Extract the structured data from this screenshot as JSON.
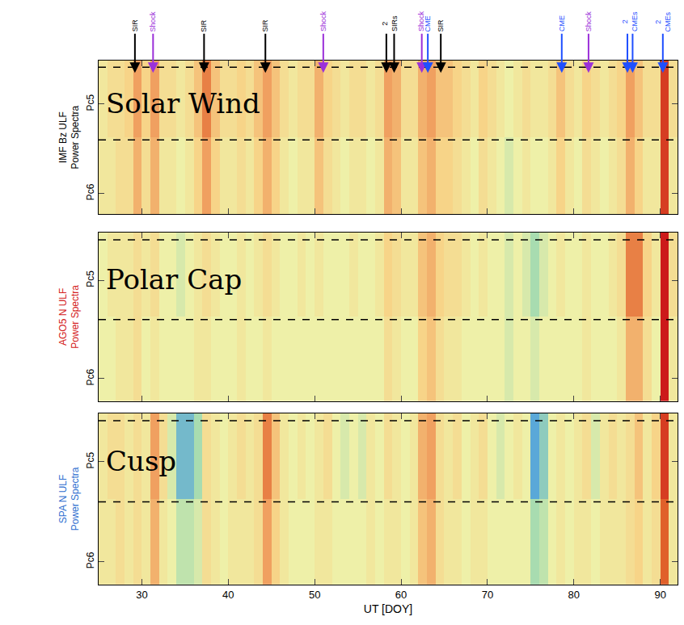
{
  "chart_data": [
    {
      "type": "heatmap",
      "label": "Solar Wind",
      "ylabel": [
        "IMF Bz ULF",
        "Power Spectra"
      ],
      "color": "#000000",
      "x": [
        25.5,
        26.5,
        27.5,
        28.5,
        29.5,
        30.5,
        31.5,
        32.5,
        33.5,
        34.5,
        35.5,
        36.5,
        37.5,
        38.5,
        39.5,
        40.5,
        41.5,
        42.5,
        43.5,
        44.5,
        45.5,
        46.5,
        47.5,
        48.5,
        49.5,
        50.5,
        51.5,
        52.5,
        53.5,
        54.5,
        55.5,
        56.5,
        57.5,
        58.5,
        59.5,
        60.5,
        61.5,
        62.5,
        63.5,
        64.5,
        65.5,
        66.5,
        67.5,
        68.5,
        69.5,
        70.5,
        71.5,
        72.5,
        73.5,
        74.5,
        75.5,
        76.5,
        77.5,
        78.5,
        79.5,
        80.5,
        81.5,
        82.5,
        83.5,
        84.5,
        85.5,
        86.5,
        87.5,
        88.5,
        89.5,
        90.5,
        91.5
      ],
      "y": [
        0.75,
        2.25
      ],
      "z": [
        [
          0.55,
          0.55,
          0.6,
          0.6,
          0.75,
          0.6,
          0.75,
          0.55,
          0.55,
          0.5,
          0.55,
          0.65,
          0.8,
          0.65,
          0.55,
          0.55,
          0.6,
          0.55,
          0.65,
          0.75,
          0.65,
          0.55,
          0.5,
          0.55,
          0.55,
          0.7,
          0.6,
          0.55,
          0.5,
          0.55,
          0.55,
          0.5,
          0.55,
          0.75,
          0.7,
          0.55,
          0.55,
          0.7,
          0.75,
          0.65,
          0.65,
          0.6,
          0.55,
          0.5,
          0.6,
          0.55,
          0.5,
          0.45,
          0.5,
          0.55,
          0.5,
          0.5,
          0.55,
          0.65,
          0.55,
          0.5,
          0.6,
          0.55,
          0.5,
          0.55,
          0.6,
          0.75,
          0.65,
          0.55,
          0.55,
          0.95,
          0.55
        ],
        [
          0.55,
          0.6,
          0.6,
          0.65,
          0.8,
          0.65,
          0.8,
          0.6,
          0.6,
          0.55,
          0.6,
          0.7,
          0.85,
          0.7,
          0.6,
          0.6,
          0.65,
          0.6,
          0.7,
          0.8,
          0.7,
          0.6,
          0.55,
          0.6,
          0.6,
          0.75,
          0.65,
          0.6,
          0.55,
          0.6,
          0.6,
          0.55,
          0.6,
          0.8,
          0.75,
          0.6,
          0.6,
          0.75,
          0.8,
          0.7,
          0.7,
          0.65,
          0.6,
          0.55,
          0.65,
          0.6,
          0.55,
          0.5,
          0.55,
          0.6,
          0.55,
          0.55,
          0.6,
          0.7,
          0.6,
          0.55,
          0.65,
          0.6,
          0.55,
          0.6,
          0.65,
          0.8,
          0.7,
          0.6,
          0.6,
          0.95,
          0.6
        ]
      ],
      "zlim": [
        0,
        1
      ],
      "xlim": [
        25,
        92
      ],
      "xticks": [
        30,
        40,
        50,
        60,
        70,
        80,
        90
      ],
      "ylim": [
        0,
        3
      ],
      "yticks": [
        {
          "value": 0.4,
          "label": "Pc6"
        },
        {
          "value": 2.15,
          "label": "Pc5"
        }
      ],
      "bands": [
        1.45,
        2.87
      ],
      "tick_labels": "y",
      "events": [
        {
          "label": "SIR",
          "x": [
            29.2
          ],
          "color": "#000000"
        },
        {
          "label": "Shock",
          "x": [
            31.3
          ],
          "color": "#9b30d9"
        },
        {
          "label": "SIR",
          "x": [
            37.2
          ],
          "color": "#000000"
        },
        {
          "label": "SIR",
          "x": [
            44.3
          ],
          "color": "#000000"
        },
        {
          "label": "Shock",
          "x": [
            51.0
          ],
          "color": "#9b30d9"
        },
        {
          "label": "2 SIRs",
          "x": [
            58.3,
            59.2
          ],
          "color": "#000000"
        },
        {
          "label": "Shock",
          "x": [
            62.4
          ],
          "color": "#9b30d9"
        },
        {
          "label": "CME",
          "x": [
            63.1
          ],
          "color": "#1f4fff"
        },
        {
          "label": "SIR",
          "x": [
            64.6
          ],
          "color": "#000000"
        },
        {
          "label": "CME",
          "x": [
            78.6
          ],
          "color": "#1f4fff"
        },
        {
          "label": "Shock",
          "x": [
            81.7
          ],
          "color": "#9b30d9"
        },
        {
          "label": "2 CMEs",
          "x": [
            86.2,
            86.8
          ],
          "color": "#1f4fff"
        },
        {
          "label": "2 CMEs",
          "x": [
            90.3
          ],
          "color": "#1f4fff"
        }
      ]
    },
    {
      "type": "heatmap",
      "label": "Polar Cap",
      "ylabel": [
        "AGO5 N ULF",
        "Power Spectra"
      ],
      "color": "#d42020",
      "x": [
        25.5,
        26.5,
        27.5,
        28.5,
        29.5,
        30.5,
        31.5,
        32.5,
        33.5,
        34.5,
        35.5,
        36.5,
        37.5,
        38.5,
        39.5,
        40.5,
        41.5,
        42.5,
        43.5,
        44.5,
        45.5,
        46.5,
        47.5,
        48.5,
        49.5,
        50.5,
        51.5,
        52.5,
        53.5,
        54.5,
        55.5,
        56.5,
        57.5,
        58.5,
        59.5,
        60.5,
        61.5,
        62.5,
        63.5,
        64.5,
        65.5,
        66.5,
        67.5,
        68.5,
        69.5,
        70.5,
        71.5,
        72.5,
        73.5,
        74.5,
        75.5,
        76.5,
        77.5,
        78.5,
        79.5,
        80.5,
        81.5,
        82.5,
        83.5,
        84.5,
        85.5,
        86.5,
        87.5,
        88.5,
        89.5,
        90.5,
        91.5
      ],
      "y": [
        0.75,
        2.25
      ],
      "z": [
        [
          0.5,
          0.5,
          0.55,
          0.55,
          0.6,
          0.5,
          0.55,
          0.5,
          0.5,
          0.5,
          0.5,
          0.55,
          0.55,
          0.5,
          0.5,
          0.5,
          0.55,
          0.5,
          0.5,
          0.55,
          0.5,
          0.5,
          0.5,
          0.5,
          0.5,
          0.5,
          0.5,
          0.5,
          0.5,
          0.5,
          0.5,
          0.5,
          0.5,
          0.6,
          0.55,
          0.5,
          0.5,
          0.65,
          0.7,
          0.6,
          0.55,
          0.55,
          0.5,
          0.5,
          0.5,
          0.5,
          0.5,
          0.45,
          0.5,
          0.5,
          0.45,
          0.5,
          0.5,
          0.5,
          0.5,
          0.5,
          0.55,
          0.5,
          0.5,
          0.5,
          0.55,
          0.75,
          0.75,
          0.6,
          0.5,
          1.0,
          0.55
        ],
        [
          0.5,
          0.55,
          0.55,
          0.55,
          0.6,
          0.55,
          0.6,
          0.5,
          0.5,
          0.45,
          0.5,
          0.55,
          0.6,
          0.55,
          0.5,
          0.5,
          0.55,
          0.5,
          0.55,
          0.6,
          0.55,
          0.5,
          0.5,
          0.55,
          0.5,
          0.55,
          0.5,
          0.5,
          0.5,
          0.55,
          0.5,
          0.5,
          0.55,
          0.65,
          0.6,
          0.55,
          0.55,
          0.7,
          0.75,
          0.65,
          0.6,
          0.6,
          0.55,
          0.5,
          0.55,
          0.5,
          0.5,
          0.45,
          0.5,
          0.45,
          0.35,
          0.45,
          0.5,
          0.55,
          0.5,
          0.5,
          0.55,
          0.5,
          0.5,
          0.55,
          0.6,
          0.85,
          0.85,
          0.65,
          0.55,
          1.0,
          0.6
        ]
      ],
      "zlim": [
        0,
        1
      ],
      "xlim": [
        25,
        92
      ],
      "xticks": [
        30,
        40,
        50,
        60,
        70,
        80,
        90
      ],
      "ylim": [
        0,
        3
      ],
      "yticks": [
        {
          "value": 0.4,
          "label": "Pc6"
        },
        {
          "value": 2.15,
          "label": "Pc5"
        }
      ],
      "bands": [
        1.45,
        2.87
      ],
      "tick_labels": "y"
    },
    {
      "type": "heatmap",
      "label": "Cusp",
      "ylabel": [
        "SPA N ULF",
        "Power Spectra"
      ],
      "color": "#2f6fd0",
      "xlabel": "UT [DOY]",
      "x": [
        25.5,
        26.5,
        27.5,
        28.5,
        29.5,
        30.5,
        31.5,
        32.5,
        33.5,
        34.5,
        35.5,
        36.5,
        37.5,
        38.5,
        39.5,
        40.5,
        41.5,
        42.5,
        43.5,
        44.5,
        45.5,
        46.5,
        47.5,
        48.5,
        49.5,
        50.5,
        51.5,
        52.5,
        53.5,
        54.5,
        55.5,
        56.5,
        57.5,
        58.5,
        59.5,
        60.5,
        61.5,
        62.5,
        63.5,
        64.5,
        65.5,
        66.5,
        67.5,
        68.5,
        69.5,
        70.5,
        71.5,
        72.5,
        73.5,
        74.5,
        75.5,
        76.5,
        77.5,
        78.5,
        79.5,
        80.5,
        81.5,
        82.5,
        83.5,
        84.5,
        85.5,
        86.5,
        87.5,
        88.5,
        89.5,
        90.5,
        91.5
      ],
      "y": [
        0.75,
        2.25
      ],
      "z": [
        [
          0.55,
          0.55,
          0.6,
          0.55,
          0.6,
          0.55,
          0.75,
          0.55,
          0.5,
          0.4,
          0.4,
          0.45,
          0.6,
          0.55,
          0.5,
          0.55,
          0.55,
          0.55,
          0.6,
          0.8,
          0.65,
          0.55,
          0.5,
          0.5,
          0.5,
          0.55,
          0.55,
          0.5,
          0.5,
          0.5,
          0.5,
          0.55,
          0.5,
          0.55,
          0.55,
          0.5,
          0.55,
          0.7,
          0.75,
          0.6,
          0.55,
          0.55,
          0.5,
          0.55,
          0.55,
          0.5,
          0.5,
          0.5,
          0.5,
          0.5,
          0.35,
          0.4,
          0.5,
          0.55,
          0.5,
          0.55,
          0.55,
          0.5,
          0.55,
          0.55,
          0.55,
          0.6,
          0.65,
          0.55,
          0.6,
          0.9,
          0.55
        ],
        [
          0.55,
          0.6,
          0.6,
          0.55,
          0.6,
          0.55,
          0.8,
          0.6,
          0.45,
          0.25,
          0.25,
          0.35,
          0.6,
          0.55,
          0.5,
          0.55,
          0.6,
          0.55,
          0.6,
          0.85,
          0.7,
          0.55,
          0.5,
          0.55,
          0.5,
          0.55,
          0.6,
          0.5,
          0.45,
          0.5,
          0.45,
          0.55,
          0.5,
          0.6,
          0.55,
          0.5,
          0.55,
          0.75,
          0.8,
          0.6,
          0.55,
          0.6,
          0.5,
          0.55,
          0.6,
          0.5,
          0.45,
          0.5,
          0.55,
          0.5,
          0.2,
          0.3,
          0.5,
          0.55,
          0.5,
          0.55,
          0.6,
          0.45,
          0.55,
          0.6,
          0.55,
          0.6,
          0.7,
          0.55,
          0.65,
          0.95,
          0.55
        ]
      ],
      "zlim": [
        0,
        1
      ],
      "xlim": [
        25,
        92
      ],
      "xticks": [
        30,
        40,
        50,
        60,
        70,
        80,
        90
      ],
      "ylim": [
        0,
        3
      ],
      "yticks": [
        {
          "value": 0.4,
          "label": "Pc6"
        },
        {
          "value": 2.15,
          "label": "Pc5"
        }
      ],
      "bands": [
        1.45,
        2.87
      ],
      "tick_labels": true
    }
  ]
}
